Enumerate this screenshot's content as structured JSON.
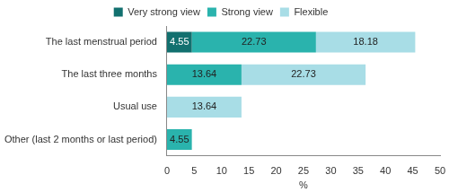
{
  "chart_data": {
    "type": "bar",
    "orientation": "horizontal",
    "stacked": true,
    "data_labels": true,
    "grid": false,
    "legend": "top",
    "x_label": "%",
    "categories": [
      "The last menstrual period",
      "The last three months",
      "Usual use",
      "Other (last 2 months or last period)"
    ],
    "series": [
      {
        "name": "Very strong view",
        "color": "#12706f",
        "values": [
          4.55,
          null,
          null,
          null
        ]
      },
      {
        "name": "Strong view",
        "color": "#2ab3ad",
        "values": [
          22.73,
          13.64,
          null,
          4.55
        ]
      },
      {
        "name": "Flexible",
        "color": "#a8dde6",
        "values": [
          18.18,
          22.73,
          13.64,
          null
        ]
      }
    ],
    "xlim": [
      0,
      50
    ],
    "xticks": [
      0,
      5,
      10,
      15,
      20,
      25,
      30,
      35,
      40,
      45,
      50
    ]
  }
}
